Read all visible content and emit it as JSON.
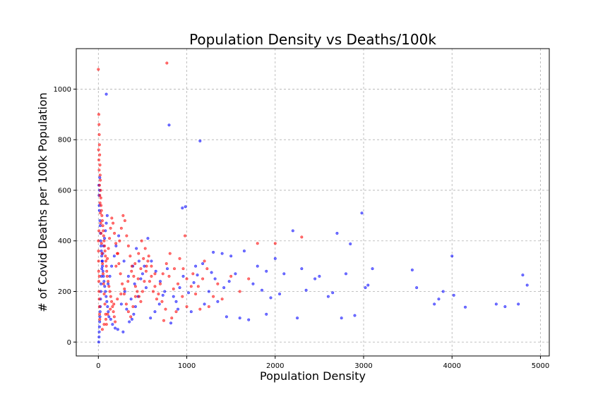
{
  "chart_data": {
    "type": "scatter",
    "title": "Population Density vs Deaths/100k",
    "xlabel": "Population Density",
    "ylabel": "# of Covid Deaths per 100k Population",
    "xlim": [
      -250,
      5100
    ],
    "ylim": [
      -55,
      1160
    ],
    "xticks": [
      0,
      1000,
      2000,
      3000,
      4000,
      5000
    ],
    "yticks": [
      0,
      200,
      400,
      600,
      800,
      1000
    ],
    "grid": true,
    "series": [
      {
        "color": "#0000ff",
        "points": [
          [
            800,
            858
          ],
          [
            1150,
            795
          ],
          [
            90,
            980
          ],
          [
            2980,
            510
          ],
          [
            950,
            530
          ],
          [
            985,
            535
          ],
          [
            2200,
            440
          ],
          [
            2700,
            430
          ],
          [
            2850,
            388
          ],
          [
            4000,
            340
          ],
          [
            1100,
            300
          ],
          [
            1300,
            355
          ],
          [
            1400,
            350
          ],
          [
            1500,
            340
          ],
          [
            1650,
            360
          ],
          [
            1800,
            300
          ],
          [
            1900,
            280
          ],
          [
            2000,
            330
          ],
          [
            2100,
            270
          ],
          [
            2300,
            290
          ],
          [
            2500,
            260
          ],
          [
            2600,
            180
          ],
          [
            2800,
            270
          ],
          [
            3050,
            225
          ],
          [
            3100,
            290
          ],
          [
            3550,
            285
          ],
          [
            3600,
            215
          ],
          [
            3850,
            170
          ],
          [
            3900,
            200
          ],
          [
            4020,
            185
          ],
          [
            4150,
            138
          ],
          [
            4500,
            150
          ],
          [
            4600,
            140
          ],
          [
            4750,
            150
          ],
          [
            4800,
            265
          ],
          [
            4850,
            225
          ],
          [
            2900,
            105
          ],
          [
            2750,
            95
          ],
          [
            2250,
            95
          ],
          [
            1900,
            110
          ],
          [
            1700,
            88
          ],
          [
            1600,
            95
          ],
          [
            1450,
            100
          ],
          [
            1350,
            160
          ],
          [
            1250,
            200
          ],
          [
            1200,
            150
          ],
          [
            1050,
            120
          ],
          [
            900,
            130
          ],
          [
            850,
            180
          ],
          [
            820,
            75
          ],
          [
            750,
            200
          ],
          [
            700,
            240
          ],
          [
            650,
            280
          ],
          [
            600,
            320
          ],
          [
            560,
            410
          ],
          [
            520,
            300
          ],
          [
            480,
            250
          ],
          [
            450,
            180
          ],
          [
            420,
            140
          ],
          [
            400,
            110
          ],
          [
            380,
            90
          ],
          [
            350,
            80
          ],
          [
            300,
            200
          ],
          [
            260,
            150
          ],
          [
            230,
            420
          ],
          [
            200,
            380
          ],
          [
            180,
            340
          ],
          [
            150,
            300
          ],
          [
            130,
            260
          ],
          [
            110,
            230
          ],
          [
            100,
            500
          ],
          [
            90,
            470
          ],
          [
            80,
            440
          ],
          [
            70,
            410
          ],
          [
            60,
            380
          ],
          [
            50,
            350
          ],
          [
            45,
            320
          ],
          [
            40,
            290
          ],
          [
            35,
            260
          ],
          [
            30,
            230
          ],
          [
            28,
            200
          ],
          [
            25,
            170
          ],
          [
            22,
            140
          ],
          [
            20,
            120
          ],
          [
            18,
            100
          ],
          [
            15,
            80
          ],
          [
            12,
            60
          ],
          [
            10,
            40
          ],
          [
            8,
            20
          ],
          [
            5,
            0
          ],
          [
            6,
            620
          ],
          [
            8,
            580
          ],
          [
            10,
            540
          ],
          [
            12,
            520
          ],
          [
            14,
            600
          ],
          [
            16,
            650
          ],
          [
            18,
            480
          ],
          [
            20,
            460
          ],
          [
            24,
            430
          ],
          [
            26,
            400
          ],
          [
            30,
            380
          ],
          [
            34,
            360
          ],
          [
            38,
            340
          ],
          [
            42,
            320
          ],
          [
            46,
            300
          ],
          [
            52,
            280
          ],
          [
            58,
            260
          ],
          [
            64,
            240
          ],
          [
            72,
            220
          ],
          [
            80,
            200
          ],
          [
            88,
            180
          ],
          [
            96,
            160
          ],
          [
            104,
            140
          ],
          [
            112,
            120
          ],
          [
            120,
            100
          ],
          [
            140,
            90
          ],
          [
            160,
            70
          ],
          [
            190,
            55
          ],
          [
            220,
            50
          ],
          [
            280,
            40
          ],
          [
            3020,
            215
          ],
          [
            3800,
            150
          ],
          [
            2450,
            250
          ],
          [
            2650,
            195
          ],
          [
            2350,
            205
          ],
          [
            2050,
            190
          ],
          [
            1950,
            175
          ],
          [
            1850,
            205
          ],
          [
            1750,
            230
          ],
          [
            1550,
            270
          ],
          [
            1480,
            240
          ],
          [
            1420,
            215
          ],
          [
            1320,
            250
          ],
          [
            1280,
            275
          ],
          [
            1180,
            310
          ],
          [
            1120,
            265
          ],
          [
            1080,
            235
          ],
          [
            1020,
            195
          ],
          [
            960,
            260
          ],
          [
            920,
            215
          ],
          [
            880,
            160
          ],
          [
            780,
            290
          ],
          [
            730,
            185
          ],
          [
            690,
            150
          ],
          [
            640,
            120
          ],
          [
            590,
            95
          ],
          [
            540,
            215
          ],
          [
            500,
            270
          ],
          [
            460,
            320
          ],
          [
            430,
            370
          ],
          [
            410,
            230
          ],
          [
            390,
            300
          ],
          [
            370,
            170
          ],
          [
            340,
            260
          ],
          [
            320,
            130
          ],
          [
            290,
            320
          ]
        ]
      },
      {
        "color": "#ff0000",
        "points": [
          [
            0,
            1078
          ],
          [
            775,
            1103
          ],
          [
            5,
            900
          ],
          [
            8,
            860
          ],
          [
            10,
            820
          ],
          [
            12,
            780
          ],
          [
            15,
            740
          ],
          [
            18,
            700
          ],
          [
            20,
            660
          ],
          [
            22,
            640
          ],
          [
            25,
            600
          ],
          [
            28,
            570
          ],
          [
            30,
            540
          ],
          [
            35,
            520
          ],
          [
            40,
            500
          ],
          [
            45,
            480
          ],
          [
            50,
            460
          ],
          [
            55,
            440
          ],
          [
            60,
            420
          ],
          [
            65,
            400
          ],
          [
            70,
            380
          ],
          [
            75,
            360
          ],
          [
            80,
            340
          ],
          [
            85,
            320
          ],
          [
            90,
            300
          ],
          [
            95,
            280
          ],
          [
            100,
            260
          ],
          [
            110,
            240
          ],
          [
            120,
            220
          ],
          [
            130,
            200
          ],
          [
            140,
            180
          ],
          [
            150,
            160
          ],
          [
            160,
            140
          ],
          [
            170,
            120
          ],
          [
            180,
            100
          ],
          [
            190,
            80
          ],
          [
            200,
            300
          ],
          [
            220,
            350
          ],
          [
            240,
            400
          ],
          [
            260,
            450
          ],
          [
            280,
            500
          ],
          [
            300,
            480
          ],
          [
            320,
            420
          ],
          [
            340,
            380
          ],
          [
            360,
            340
          ],
          [
            380,
            300
          ],
          [
            400,
            260
          ],
          [
            420,
            220
          ],
          [
            440,
            200
          ],
          [
            460,
            180
          ],
          [
            480,
            160
          ],
          [
            500,
            200
          ],
          [
            520,
            240
          ],
          [
            540,
            280
          ],
          [
            560,
            320
          ],
          [
            600,
            260
          ],
          [
            640,
            220
          ],
          [
            680,
            190
          ],
          [
            720,
            160
          ],
          [
            760,
            130
          ],
          [
            800,
            260
          ],
          [
            850,
            210
          ],
          [
            900,
            230
          ],
          [
            950,
            180
          ],
          [
            980,
            420
          ],
          [
            1000,
            250
          ],
          [
            1050,
            220
          ],
          [
            1100,
            190
          ],
          [
            1200,
            320
          ],
          [
            1230,
            290
          ],
          [
            1300,
            180
          ],
          [
            1500,
            260
          ],
          [
            1800,
            390
          ],
          [
            2000,
            390
          ],
          [
            2300,
            415
          ],
          [
            1700,
            250
          ],
          [
            1600,
            200
          ],
          [
            1400,
            170
          ],
          [
            1250,
            140
          ],
          [
            1150,
            130
          ],
          [
            1000,
            140
          ],
          [
            880,
            120
          ],
          [
            830,
            95
          ],
          [
            740,
            85
          ],
          [
            640,
            270
          ],
          [
            600,
            300
          ],
          [
            570,
            340
          ],
          [
            530,
            370
          ],
          [
            490,
            400
          ],
          [
            455,
            350
          ],
          [
            415,
            310
          ],
          [
            375,
            280
          ],
          [
            335,
            240
          ],
          [
            295,
            210
          ],
          [
            255,
            190
          ],
          [
            215,
            170
          ],
          [
            175,
            150
          ],
          [
            135,
            130
          ],
          [
            105,
            110
          ],
          [
            85,
            90
          ],
          [
            65,
            70
          ],
          [
            45,
            50
          ],
          [
            3,
            760
          ],
          [
            6,
            720
          ],
          [
            9,
            680
          ],
          [
            13,
            620
          ],
          [
            16,
            580
          ],
          [
            19,
            550
          ],
          [
            23,
            510
          ],
          [
            27,
            470
          ],
          [
            31,
            430
          ],
          [
            36,
            390
          ],
          [
            41,
            350
          ],
          [
            47,
            310
          ],
          [
            53,
            270
          ],
          [
            59,
            230
          ],
          [
            66,
            190
          ],
          [
            74,
            150
          ],
          [
            82,
            110
          ],
          [
            92,
            70
          ],
          [
            102,
            330
          ],
          [
            114,
            370
          ],
          [
            126,
            410
          ],
          [
            138,
            450
          ],
          [
            152,
            490
          ],
          [
            166,
            470
          ],
          [
            182,
            430
          ],
          [
            198,
            390
          ],
          [
            214,
            350
          ],
          [
            232,
            310
          ],
          [
            250,
            270
          ],
          [
            270,
            230
          ],
          [
            292,
            190
          ],
          [
            316,
            150
          ],
          [
            340,
            120
          ],
          [
            366,
            100
          ],
          [
            392,
            140
          ],
          [
            420,
            180
          ],
          [
            450,
            250
          ],
          [
            480,
            290
          ],
          [
            510,
            330
          ],
          [
            545,
            300
          ],
          [
            580,
            240
          ],
          [
            620,
            200
          ],
          [
            660,
            170
          ],
          [
            700,
            230
          ],
          [
            730,
            270
          ],
          [
            770,
            310
          ],
          [
            810,
            350
          ],
          [
            860,
            290
          ],
          [
            920,
            330
          ],
          [
            960,
            290
          ],
          [
            1070,
            270
          ],
          [
            1130,
            220
          ],
          [
            1180,
            250
          ],
          [
            1350,
            230
          ],
          [
            10,
            170
          ],
          [
            12,
            140
          ],
          [
            14,
            110
          ],
          [
            16,
            90
          ],
          [
            8,
            200
          ],
          [
            6,
            240
          ],
          [
            4,
            280
          ],
          [
            3,
            320
          ],
          [
            2,
            360
          ],
          [
            1,
            400
          ],
          [
            7,
            440
          ],
          [
            11,
            260
          ]
        ]
      }
    ]
  }
}
